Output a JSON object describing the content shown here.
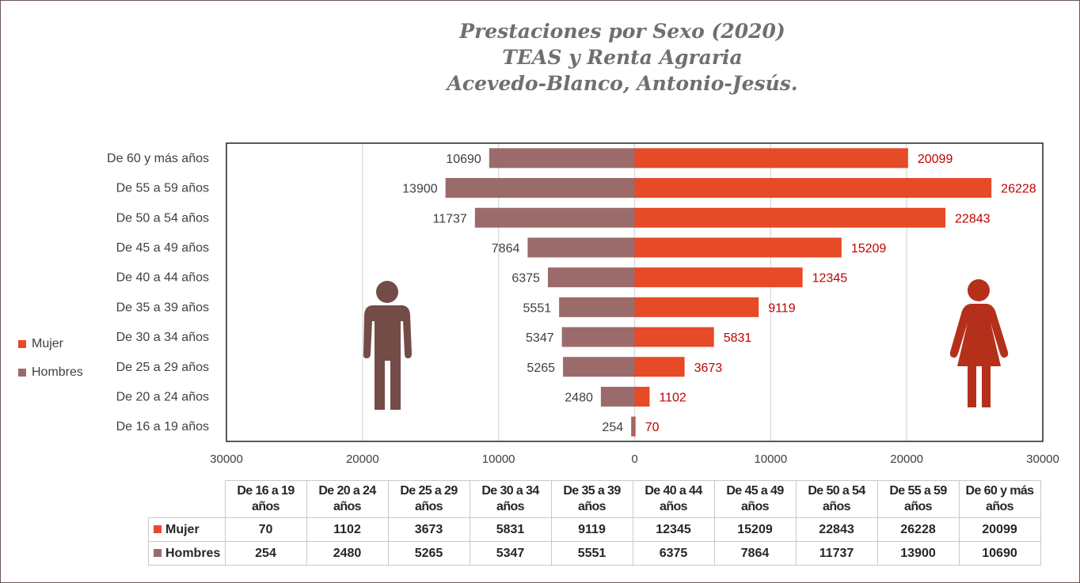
{
  "title_lines": [
    "Prestaciones por Sexo (2020)",
    "TEAS y Renta Agraria",
    "Acevedo-Blanco, Antonio-Jesús."
  ],
  "colors": {
    "mujer": "#e64a26",
    "hombres": "#9b6b6b",
    "mujer_label": "#c00000",
    "hombre_icon": "#734c47",
    "mujer_icon": "#b5301a"
  },
  "legend": [
    {
      "label": "Mujer",
      "color": "#e64a26"
    },
    {
      "label": "Hombres",
      "color": "#9b6b6b"
    }
  ],
  "table": {
    "headers": [
      "De 16 a 19 años",
      "De 20 a 24 años",
      "De 25 a 29 años",
      "De 30 a 34 años",
      "De 35 a 39 años",
      "De 40 a 44 años",
      "De 45 a 49 años",
      "De 50 a 54 años",
      "De 55 a 59 años",
      "De 60 y más años"
    ],
    "rows": [
      {
        "label": "Mujer",
        "color": "#e64a26",
        "values": [
          "70",
          "1102",
          "3673",
          "5831",
          "9119",
          "12345",
          "15209",
          "22843",
          "26228",
          "20099"
        ]
      },
      {
        "label": "Hombres",
        "color": "#9b6b6b",
        "values": [
          "254",
          "2480",
          "5265",
          "5347",
          "5551",
          "6375",
          "7864",
          "11737",
          "13900",
          "10690"
        ]
      }
    ]
  },
  "chart_data": {
    "type": "bar",
    "orientation": "horizontal-diverging",
    "title": "Prestaciones por Sexo (2020) TEAS y Renta Agraria Acevedo-Blanco, Antonio-Jesús.",
    "categories": [
      "De 60 y más años",
      "De 55 a 59 años",
      "De 50 a 54 años",
      "De 45 a 49 años",
      "De 40 a 44 años",
      "De 35 a 39 años",
      "De 30 a 34 años",
      "De 25 a 29 años",
      "De 20 a 24 años",
      "De 16 a 19 años"
    ],
    "series": [
      {
        "name": "Mujer",
        "side": "right",
        "values": [
          20099,
          26228,
          22843,
          15209,
          12345,
          9119,
          5831,
          3673,
          1102,
          70
        ]
      },
      {
        "name": "Hombres",
        "side": "left",
        "values": [
          10690,
          13900,
          11737,
          7864,
          6375,
          5551,
          5347,
          5265,
          2480,
          254
        ]
      }
    ],
    "xlim": [
      -30000,
      30000
    ],
    "xticks": [
      -30000,
      -20000,
      -10000,
      0,
      10000,
      20000,
      30000
    ],
    "xtick_labels": [
      "30000",
      "20000",
      "10000",
      "0",
      "10000",
      "20000",
      "30000"
    ],
    "xlabel": "",
    "ylabel": "",
    "grid": "vertical",
    "legend_position": "left"
  }
}
